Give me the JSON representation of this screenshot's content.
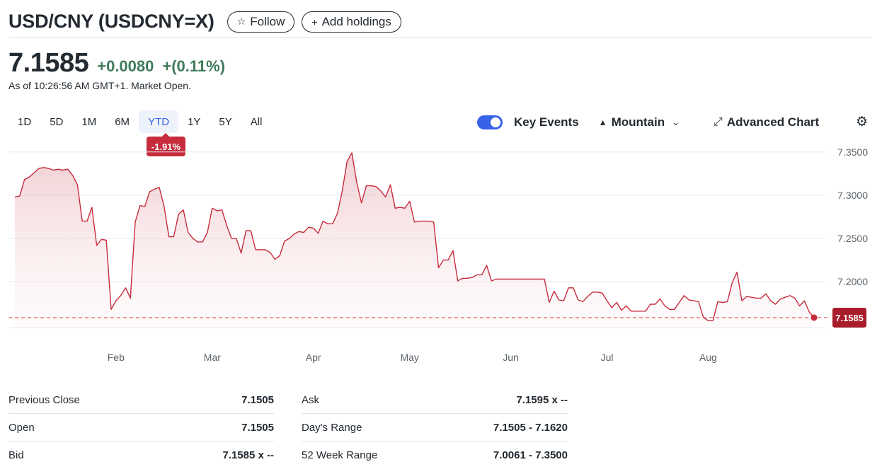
{
  "header": {
    "title": "USD/CNY (USDCNY=X)",
    "follow_label": "Follow",
    "add_holdings_label": "Add holdings"
  },
  "quote": {
    "price": "7.1585",
    "change": "+0.0080",
    "change_pct": "+(0.11%)",
    "as_of": "As of 10:26:56 AM GMT+1. Market Open."
  },
  "ranges": {
    "items": [
      "1D",
      "5D",
      "1M",
      "6M",
      "YTD",
      "1Y",
      "5Y",
      "All"
    ],
    "selected": "YTD",
    "badge": "-1.91%"
  },
  "toolbar": {
    "key_events_label": "Key Events",
    "key_events_on": true,
    "mountain_label": "Mountain",
    "advanced_chart_label": "Advanced Chart"
  },
  "colors": {
    "line": "#c62c3c",
    "up": "#3f7b5b",
    "accent": "#3862e8"
  },
  "chart_data": {
    "type": "area",
    "x_tick_labels": [
      "Feb",
      "Mar",
      "Apr",
      "May",
      "Jun",
      "Jul",
      "Aug"
    ],
    "y_tick_labels": [
      "7.3500",
      "7.3000",
      "7.2500",
      "7.2000"
    ],
    "y_ticks": [
      7.35,
      7.3,
      7.25,
      7.2
    ],
    "ylim": [
      7.147,
      7.358
    ],
    "current_value": 7.1585,
    "current_label": "7.1585",
    "grid": true,
    "series": [
      {
        "values": [
          7.298,
          7.299,
          7.318,
          7.321,
          7.326,
          7.331,
          7.332,
          7.331,
          7.329,
          7.33,
          7.329,
          7.33,
          7.323,
          7.312,
          7.27,
          7.27,
          7.286,
          7.242,
          7.249,
          7.248,
          7.168,
          7.178,
          7.184,
          7.193,
          7.181,
          7.269,
          7.288,
          7.287,
          7.304,
          7.307,
          7.309,
          7.287,
          7.252,
          7.252,
          7.278,
          7.283,
          7.257,
          7.25,
          7.246,
          7.246,
          7.257,
          7.285,
          7.282,
          7.283,
          7.265,
          7.25,
          7.25,
          7.233,
          7.259,
          7.259,
          7.237,
          7.237,
          7.237,
          7.234,
          7.226,
          7.23,
          7.247,
          7.25,
          7.255,
          7.258,
          7.257,
          7.263,
          7.262,
          7.256,
          7.27,
          7.267,
          7.267,
          7.279,
          7.305,
          7.339,
          7.349,
          7.315,
          7.291,
          7.311,
          7.311,
          7.31,
          7.305,
          7.298,
          7.312,
          7.285,
          7.286,
          7.285,
          7.293,
          7.269,
          7.27,
          7.27,
          7.27,
          7.269,
          7.216,
          7.225,
          7.225,
          7.236,
          7.201,
          7.204,
          7.204,
          7.205,
          7.208,
          7.208,
          7.219,
          7.201,
          7.203,
          7.203,
          7.203,
          7.203,
          7.203,
          7.203,
          7.203,
          7.203,
          7.203,
          7.203,
          7.203,
          7.176,
          7.189,
          7.179,
          7.178,
          7.193,
          7.193,
          7.179,
          7.177,
          7.183,
          7.188,
          7.188,
          7.187,
          7.178,
          7.17,
          7.176,
          7.167,
          7.172,
          7.166,
          7.166,
          7.166,
          7.166,
          7.174,
          7.174,
          7.18,
          7.172,
          7.168,
          7.168,
          7.176,
          7.184,
          7.179,
          7.178,
          7.177,
          7.159,
          7.155,
          7.155,
          7.177,
          7.176,
          7.177,
          7.199,
          7.211,
          7.178,
          7.183,
          7.182,
          7.181,
          7.181,
          7.186,
          7.178,
          7.174,
          7.18,
          7.182,
          7.184,
          7.181,
          7.172,
          7.178,
          7.165,
          7.1585
        ]
      }
    ]
  },
  "stats": {
    "left": [
      {
        "label": "Previous Close",
        "value": "7.1505"
      },
      {
        "label": "Open",
        "value": "7.1505"
      },
      {
        "label": "Bid",
        "value": "7.1585 x --"
      }
    ],
    "right": [
      {
        "label": "Ask",
        "value": "7.1595 x --"
      },
      {
        "label": "Day's Range",
        "value": "7.1505 - 7.1620"
      },
      {
        "label": "52 Week Range",
        "value": "7.0061 - 7.3500"
      }
    ]
  }
}
